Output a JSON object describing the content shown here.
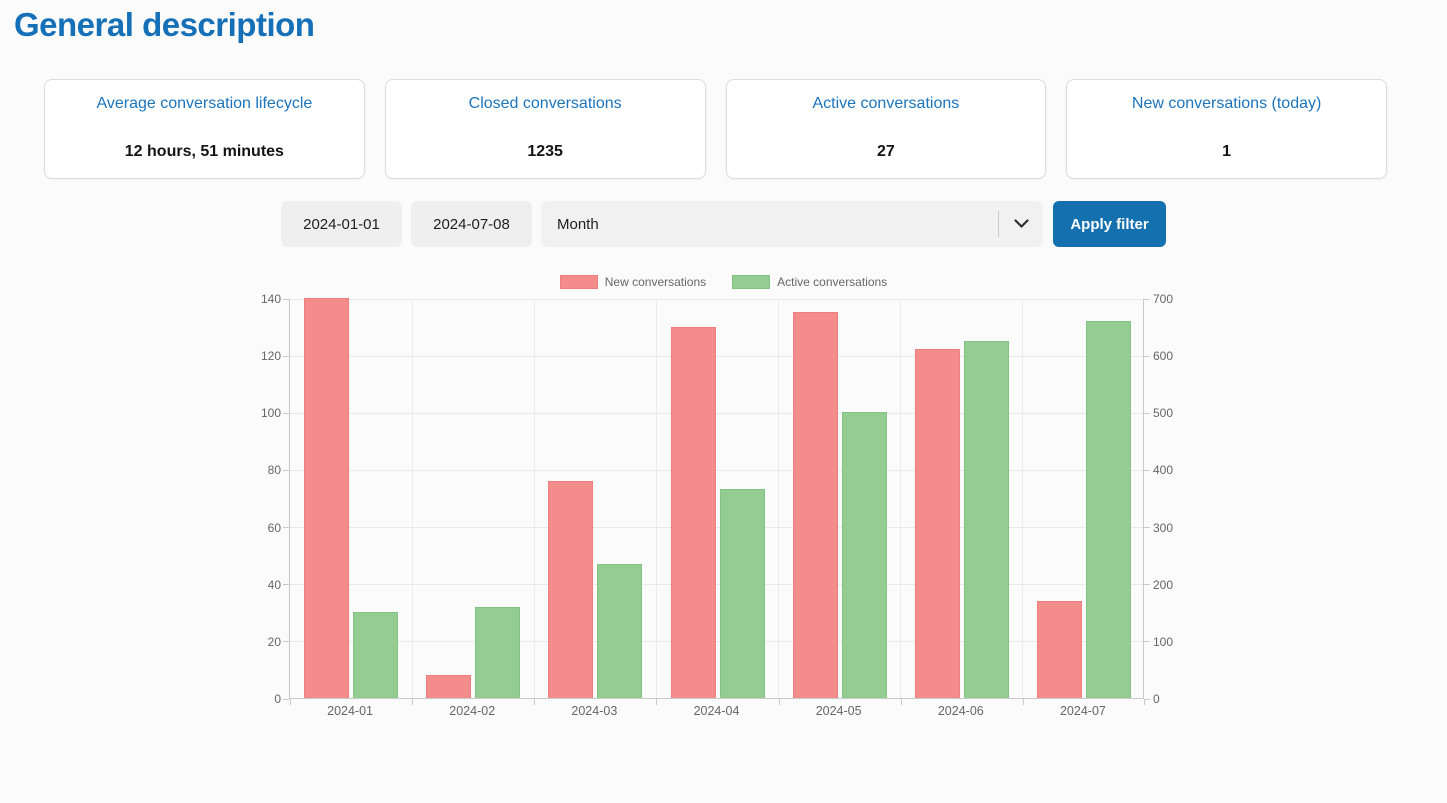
{
  "page": {
    "title": "General description"
  },
  "stats": [
    {
      "label": "Average conversation lifecycle",
      "value": "12 hours, 51 minutes"
    },
    {
      "label": "Closed conversations",
      "value": "1235"
    },
    {
      "label": "Active conversations",
      "value": "27"
    },
    {
      "label": "New conversations (today)",
      "value": "1"
    }
  ],
  "filters": {
    "start_date": "2024-01-01",
    "end_date": "2024-07-08",
    "group_by_selected": "Month",
    "apply_label": "Apply filter"
  },
  "colors": {
    "heading": "#1570b8",
    "card_title": "#1b74bc",
    "button_bg": "#1570af",
    "bar_new": "#f58c8c",
    "bar_new_border": "#f17e7e",
    "bar_active": "#94cc92",
    "bar_active_border": "#82c282"
  },
  "chart_data": {
    "type": "bar",
    "title": "",
    "xlabel": "",
    "ylabel_left": "",
    "ylabel_right": "",
    "grid": true,
    "legend_position": "top",
    "categories": [
      "2024-01",
      "2024-02",
      "2024-03",
      "2024-04",
      "2024-05",
      "2024-06",
      "2024-07"
    ],
    "series": [
      {
        "name": "New conversations",
        "axis": "left",
        "color": "#f58c8c",
        "border_color": "#f17e7e",
        "values": [
          140,
          8,
          76,
          130,
          135,
          122,
          34
        ]
      },
      {
        "name": "Active conversations",
        "axis": "right",
        "color": "#94cc92",
        "border_color": "#82c282",
        "values": [
          150,
          160,
          235,
          365,
          500,
          625,
          660
        ]
      }
    ],
    "left_axis": {
      "min": 0,
      "max": 140,
      "ticks": [
        0,
        20,
        40,
        60,
        80,
        100,
        120,
        140
      ]
    },
    "right_axis": {
      "min": 0,
      "max": 700,
      "ticks": [
        0,
        100,
        200,
        300,
        400,
        500,
        600,
        700
      ]
    }
  }
}
